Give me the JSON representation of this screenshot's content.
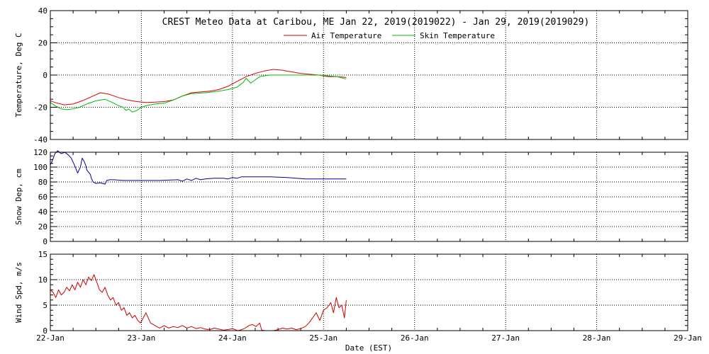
{
  "title": "CREST Meteo Data at Caribou, ME   Jan 22, 2019(2019022) - Jan 29, 2019(2019029)",
  "xlabel": "Date (EST)",
  "x_ticks": [
    "22-Jan",
    "23-Jan",
    "24-Jan",
    "25-Jan",
    "26-Jan",
    "27-Jan",
    "28-Jan",
    "29-Jan"
  ],
  "colors": {
    "air": "#dd0000",
    "skin": "#00bb00",
    "snow": "#000099",
    "wind": "#cc0000",
    "grid": "#000000"
  },
  "chart_data": [
    {
      "type": "line",
      "ylabel": "Temperature, Deg C",
      "xlim": [
        0,
        7
      ],
      "ylim": [
        -40,
        40
      ],
      "y_ticks": [
        -40,
        -20,
        0,
        20,
        40
      ],
      "y_tick_labels": [
        "-40",
        "-20",
        "0",
        "20",
        "40"
      ],
      "grid": true,
      "legend": "top-center",
      "series": [
        {
          "name": "Air Temperature",
          "x": [
            0,
            0.05,
            0.15,
            0.25,
            0.35,
            0.45,
            0.55,
            0.65,
            0.75,
            0.85,
            0.95,
            1.05,
            1.15,
            1.25,
            1.35,
            1.45,
            1.55,
            1.65,
            1.75,
            1.85,
            1.95,
            2.05,
            2.15,
            2.25,
            2.35,
            2.45,
            2.55,
            2.65,
            2.75,
            2.85,
            2.95,
            3.05,
            3.15,
            3.25
          ],
          "y": [
            -16,
            -17,
            -18.5,
            -18,
            -16,
            -13.5,
            -11,
            -12,
            -14,
            -15.5,
            -16.5,
            -17,
            -16.8,
            -16.5,
            -15.5,
            -13,
            -11,
            -10.5,
            -10,
            -9,
            -7,
            -4,
            -1,
            1,
            2.5,
            3.5,
            3,
            2,
            1,
            0.5,
            0,
            -1,
            -1,
            -1.5
          ]
        },
        {
          "name": "Skin Temperature",
          "x": [
            0,
            0.05,
            0.12,
            0.18,
            0.25,
            0.32,
            0.4,
            0.5,
            0.6,
            0.68,
            0.75,
            0.8,
            0.83,
            0.86,
            0.9,
            0.95,
            1.0,
            1.05,
            1.15,
            1.25,
            1.35,
            1.45,
            1.55,
            1.7,
            1.85,
            1.95,
            2.05,
            2.12,
            2.15,
            2.2,
            2.3,
            2.4,
            2.6,
            2.8,
            2.95,
            3.05,
            3.15,
            3.25
          ],
          "y": [
            -17,
            -19,
            -21,
            -21.5,
            -21,
            -20,
            -18,
            -16,
            -15,
            -17,
            -19,
            -20,
            -22,
            -21,
            -23,
            -22,
            -20,
            -19,
            -18,
            -17.5,
            -15.5,
            -13,
            -11.5,
            -11,
            -10,
            -9,
            -7.5,
            -4.5,
            -2,
            -5,
            -1,
            0,
            0,
            0,
            0,
            -0.5,
            -1,
            -2.5
          ]
        }
      ]
    },
    {
      "type": "line",
      "ylabel": "Snow Dep, cm",
      "xlim": [
        0,
        7
      ],
      "ylim": [
        0,
        120
      ],
      "y_ticks": [
        0,
        20,
        40,
        60,
        80,
        100,
        120
      ],
      "y_tick_labels": [
        "0",
        "20",
        "40",
        "60",
        "80",
        "100",
        "120"
      ],
      "grid": true,
      "series": [
        {
          "name": "",
          "x": [
            0,
            0.02,
            0.05,
            0.08,
            0.12,
            0.16,
            0.2,
            0.23,
            0.26,
            0.28,
            0.3,
            0.33,
            0.35,
            0.37,
            0.39,
            0.4,
            0.42,
            0.44,
            0.45,
            0.47,
            0.5,
            0.55,
            0.6,
            0.62,
            0.65,
            0.7,
            0.8,
            1.0,
            1.2,
            1.4,
            1.45,
            1.5,
            1.55,
            1.6,
            1.65,
            1.7,
            1.8,
            1.9,
            1.95,
            2.0,
            2.05,
            2.1,
            2.2,
            2.4,
            2.6,
            2.8,
            3.0,
            3.25
          ],
          "y": [
            103,
            108,
            118,
            122,
            118,
            120,
            116,
            112,
            104,
            98,
            92,
            100,
            112,
            108,
            102,
            96,
            93,
            90,
            85,
            80,
            78,
            79,
            77,
            82,
            83,
            83,
            82,
            82,
            82,
            83,
            81,
            84,
            82,
            85,
            83,
            84,
            85,
            85,
            84,
            86,
            85,
            87,
            87,
            87,
            86,
            84,
            84,
            84
          ]
        }
      ]
    },
    {
      "type": "line",
      "ylabel": "Wind Spd, m/s",
      "xlim": [
        0,
        7
      ],
      "ylim": [
        0,
        15
      ],
      "y_ticks": [
        0,
        5,
        10,
        15
      ],
      "y_tick_labels": [
        "0",
        "5",
        "10",
        "15"
      ],
      "grid": true,
      "series": [
        {
          "name": "",
          "x": [
            0,
            0.03,
            0.06,
            0.09,
            0.12,
            0.15,
            0.18,
            0.21,
            0.24,
            0.27,
            0.3,
            0.33,
            0.36,
            0.39,
            0.42,
            0.45,
            0.48,
            0.51,
            0.54,
            0.57,
            0.6,
            0.63,
            0.66,
            0.69,
            0.72,
            0.75,
            0.78,
            0.81,
            0.84,
            0.87,
            0.9,
            0.93,
            0.96,
            0.99,
            1.02,
            1.05,
            1.1,
            1.15,
            1.2,
            1.25,
            1.3,
            1.35,
            1.4,
            1.45,
            1.5,
            1.55,
            1.6,
            1.65,
            1.7,
            1.75,
            1.8,
            1.85,
            1.9,
            1.95,
            2.0,
            2.03,
            2.06,
            2.1,
            2.14,
            2.18,
            2.22,
            2.26,
            2.3,
            2.32,
            2.36,
            2.4,
            2.45,
            2.5,
            2.55,
            2.6,
            2.65,
            2.7,
            2.75,
            2.8,
            2.84,
            2.88,
            2.92,
            2.96,
            3.0,
            3.04,
            3.08,
            3.11,
            3.14,
            3.17,
            3.2,
            3.23,
            3.25
          ],
          "y": [
            8,
            7.5,
            6.5,
            8,
            7,
            7.5,
            8.5,
            7.8,
            9,
            8,
            9.5,
            8.5,
            10,
            9,
            10.5,
            9.8,
            11,
            9.5,
            8,
            7.5,
            8.5,
            7,
            6,
            6.5,
            5,
            5.5,
            4,
            4.5,
            3,
            3.5,
            2.5,
            3,
            2,
            1.5,
            2.5,
            3.5,
            1.5,
            1,
            0.5,
            1,
            0.5,
            0.8,
            0.6,
            1,
            0.5,
            0.8,
            0.4,
            0.6,
            0.3,
            0.2,
            0.5,
            0.3,
            0.1,
            0.2,
            0.4,
            0.2,
            0,
            0.2,
            0.5,
            1,
            1.2,
            0.8,
            1.5,
            0.1,
            0,
            0,
            0,
            0.2,
            0.5,
            0.3,
            0.5,
            0.2,
            0.4,
            0.8,
            1.5,
            2.5,
            3.5,
            2,
            4,
            4.5,
            5.5,
            3.5,
            6.5,
            4.5,
            5,
            2.5,
            6
          ]
        }
      ]
    }
  ]
}
